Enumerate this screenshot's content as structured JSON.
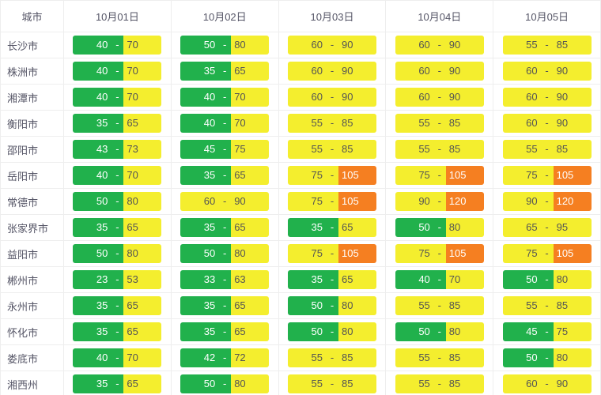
{
  "header": {
    "city_label": "城市"
  },
  "colors": {
    "green": {
      "bg": "#21b14c",
      "fg": "#ffffff"
    },
    "yellow": {
      "bg": "#f4ee2e",
      "fg": "#555555"
    },
    "orange": {
      "bg": "#f57f21",
      "fg": "#ffffff"
    }
  },
  "thresholds": {
    "green_max": 50,
    "yellow_max": 100
  },
  "dates": [
    "10月01日",
    "10月02日",
    "10月03日",
    "10月04日",
    "10月05日"
  ],
  "rows": [
    {
      "city": "长沙市",
      "vals": [
        [
          40,
          70
        ],
        [
          50,
          80
        ],
        [
          60,
          90
        ],
        [
          60,
          90
        ],
        [
          55,
          85
        ]
      ]
    },
    {
      "city": "株洲市",
      "vals": [
        [
          40,
          70
        ],
        [
          35,
          65
        ],
        [
          60,
          90
        ],
        [
          60,
          90
        ],
        [
          60,
          90
        ]
      ]
    },
    {
      "city": "湘潭市",
      "vals": [
        [
          40,
          70
        ],
        [
          40,
          70
        ],
        [
          60,
          90
        ],
        [
          60,
          90
        ],
        [
          60,
          90
        ]
      ]
    },
    {
      "city": "衡阳市",
      "vals": [
        [
          35,
          65
        ],
        [
          40,
          70
        ],
        [
          55,
          85
        ],
        [
          55,
          85
        ],
        [
          60,
          90
        ]
      ]
    },
    {
      "city": "邵阳市",
      "vals": [
        [
          43,
          73
        ],
        [
          45,
          75
        ],
        [
          55,
          85
        ],
        [
          55,
          85
        ],
        [
          55,
          85
        ]
      ]
    },
    {
      "city": "岳阳市",
      "vals": [
        [
          40,
          70
        ],
        [
          35,
          65
        ],
        [
          75,
          105
        ],
        [
          75,
          105
        ],
        [
          75,
          105
        ]
      ]
    },
    {
      "city": "常德市",
      "vals": [
        [
          50,
          80
        ],
        [
          60,
          90
        ],
        [
          75,
          105
        ],
        [
          90,
          120
        ],
        [
          90,
          120
        ]
      ]
    },
    {
      "city": "张家界市",
      "vals": [
        [
          35,
          65
        ],
        [
          35,
          65
        ],
        [
          35,
          65
        ],
        [
          50,
          80
        ],
        [
          65,
          95
        ]
      ]
    },
    {
      "city": "益阳市",
      "vals": [
        [
          50,
          80
        ],
        [
          50,
          80
        ],
        [
          75,
          105
        ],
        [
          75,
          105
        ],
        [
          75,
          105
        ]
      ]
    },
    {
      "city": "郴州市",
      "vals": [
        [
          23,
          53
        ],
        [
          33,
          63
        ],
        [
          35,
          65
        ],
        [
          40,
          70
        ],
        [
          50,
          80
        ]
      ]
    },
    {
      "city": "永州市",
      "vals": [
        [
          35,
          65
        ],
        [
          35,
          65
        ],
        [
          50,
          80
        ],
        [
          55,
          85
        ],
        [
          55,
          85
        ]
      ]
    },
    {
      "city": "怀化市",
      "vals": [
        [
          35,
          65
        ],
        [
          35,
          65
        ],
        [
          50,
          80
        ],
        [
          50,
          80
        ],
        [
          45,
          75
        ]
      ]
    },
    {
      "city": "娄底市",
      "vals": [
        [
          40,
          70
        ],
        [
          42,
          72
        ],
        [
          55,
          85
        ],
        [
          55,
          85
        ],
        [
          50,
          80
        ]
      ]
    },
    {
      "city": "湘西州",
      "vals": [
        [
          35,
          65
        ],
        [
          50,
          80
        ],
        [
          55,
          85
        ],
        [
          55,
          85
        ],
        [
          60,
          90
        ]
      ]
    }
  ]
}
